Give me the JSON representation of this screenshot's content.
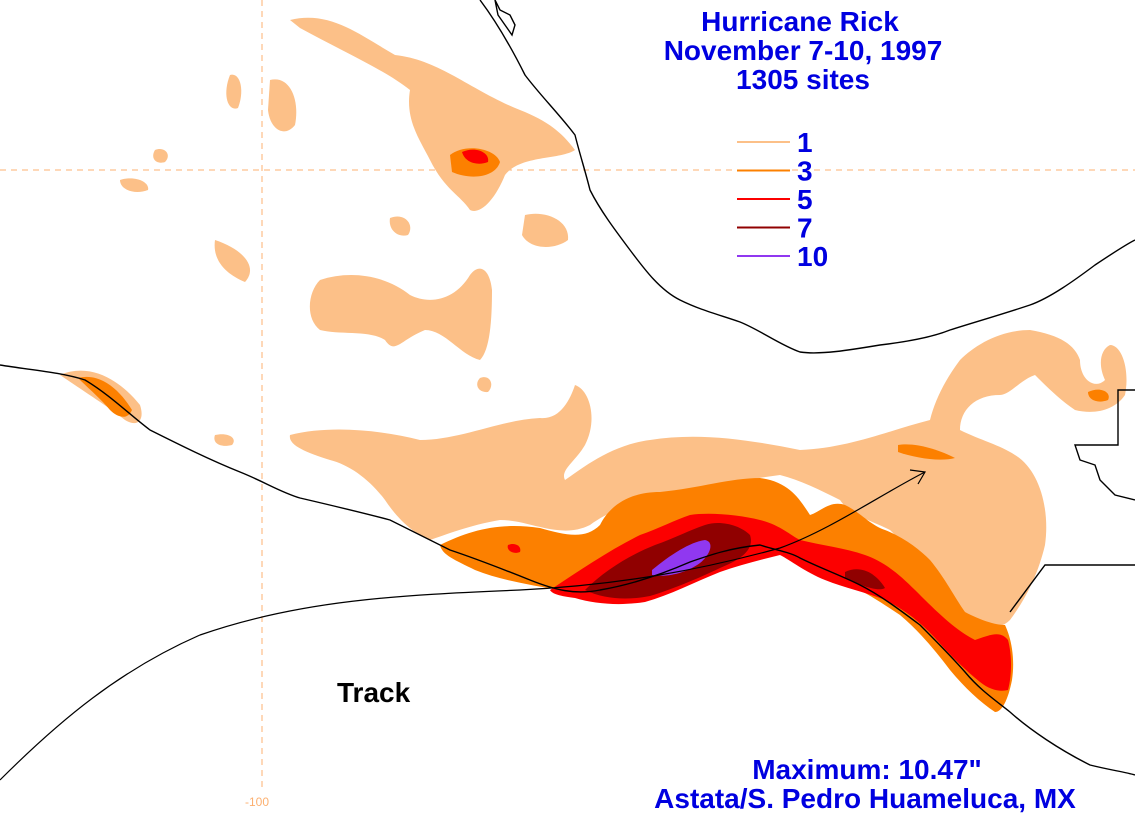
{
  "title": {
    "line1": "Hurricane Rick",
    "line2": "November 7-10, 1997",
    "line3": "1305 sites"
  },
  "legend": [
    {
      "label": "1",
      "color": "#fcc088"
    },
    {
      "label": "3",
      "color": "#fc8000"
    },
    {
      "label": "5",
      "color": "#fc0000"
    },
    {
      "label": "7",
      "color": "#900000"
    },
    {
      "label": "10",
      "color": "#9038f0"
    }
  ],
  "track_label": "Track",
  "grid_label": "-100",
  "maximum": {
    "line1": "Maximum:  10.47\"",
    "line2": "Astata/S. Pedro Huameluca, MX"
  },
  "colors": {
    "text": "#0000e0",
    "grid": "#fcb070",
    "land_outline": "#000000"
  }
}
